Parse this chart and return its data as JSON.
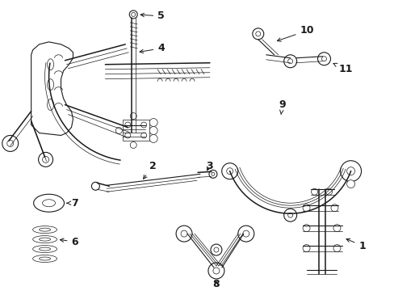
{
  "bg_color": "#ffffff",
  "line_color": "#1a1a1a",
  "fig_width": 4.89,
  "fig_height": 3.6,
  "dpi": 100,
  "lw_thin": 0.5,
  "lw_med": 0.8,
  "lw_thick": 1.1
}
